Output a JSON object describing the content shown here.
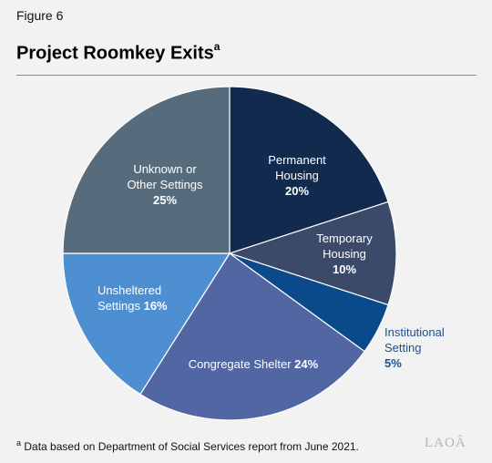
{
  "figure_label": "Figure 6",
  "title": "Project Roomkey Exits",
  "title_superscript": "a",
  "footnote": {
    "marker": "a",
    "text": "Data based on Department of Social Services report from June 2021."
  },
  "logo_text": "LAOÂ",
  "chart_data": {
    "type": "pie",
    "title": "Project Roomkey Exits",
    "unit": "%",
    "slices": [
      {
        "label": "Permanent Housing",
        "value": 20,
        "color": "#132a4f",
        "text_color": "#ffffff",
        "lines": [
          "Permanent",
          "Housing",
          "20%"
        ]
      },
      {
        "label": "Temporary Housing",
        "value": 10,
        "color": "#3c4a6a",
        "text_color": "#ffffff",
        "lines": [
          "Temporary",
          "Housing",
          "10%"
        ]
      },
      {
        "label": "Institutional Setting",
        "value": 5,
        "color": "#0a4a8a",
        "text_color": "#1f4f8f",
        "lines": [
          "Institutional",
          "Setting",
          "5%"
        ]
      },
      {
        "label": "Congregate Shelter",
        "value": 24,
        "color": "#5166a2",
        "text_color": "#ffffff",
        "lines": [
          "Congregate Shelter 24%"
        ]
      },
      {
        "label": "Unsheltered Settings",
        "value": 16,
        "color": "#4d8fd0",
        "text_color": "#ffffff",
        "lines": [
          "Unsheltered",
          "Settings 16%"
        ]
      },
      {
        "label": "Unknown or Other Settings",
        "value": 25,
        "color": "#566c7c",
        "text_color": "#ffffff",
        "lines": [
          "Unknown or",
          "Other Settings",
          "25%"
        ]
      }
    ]
  }
}
